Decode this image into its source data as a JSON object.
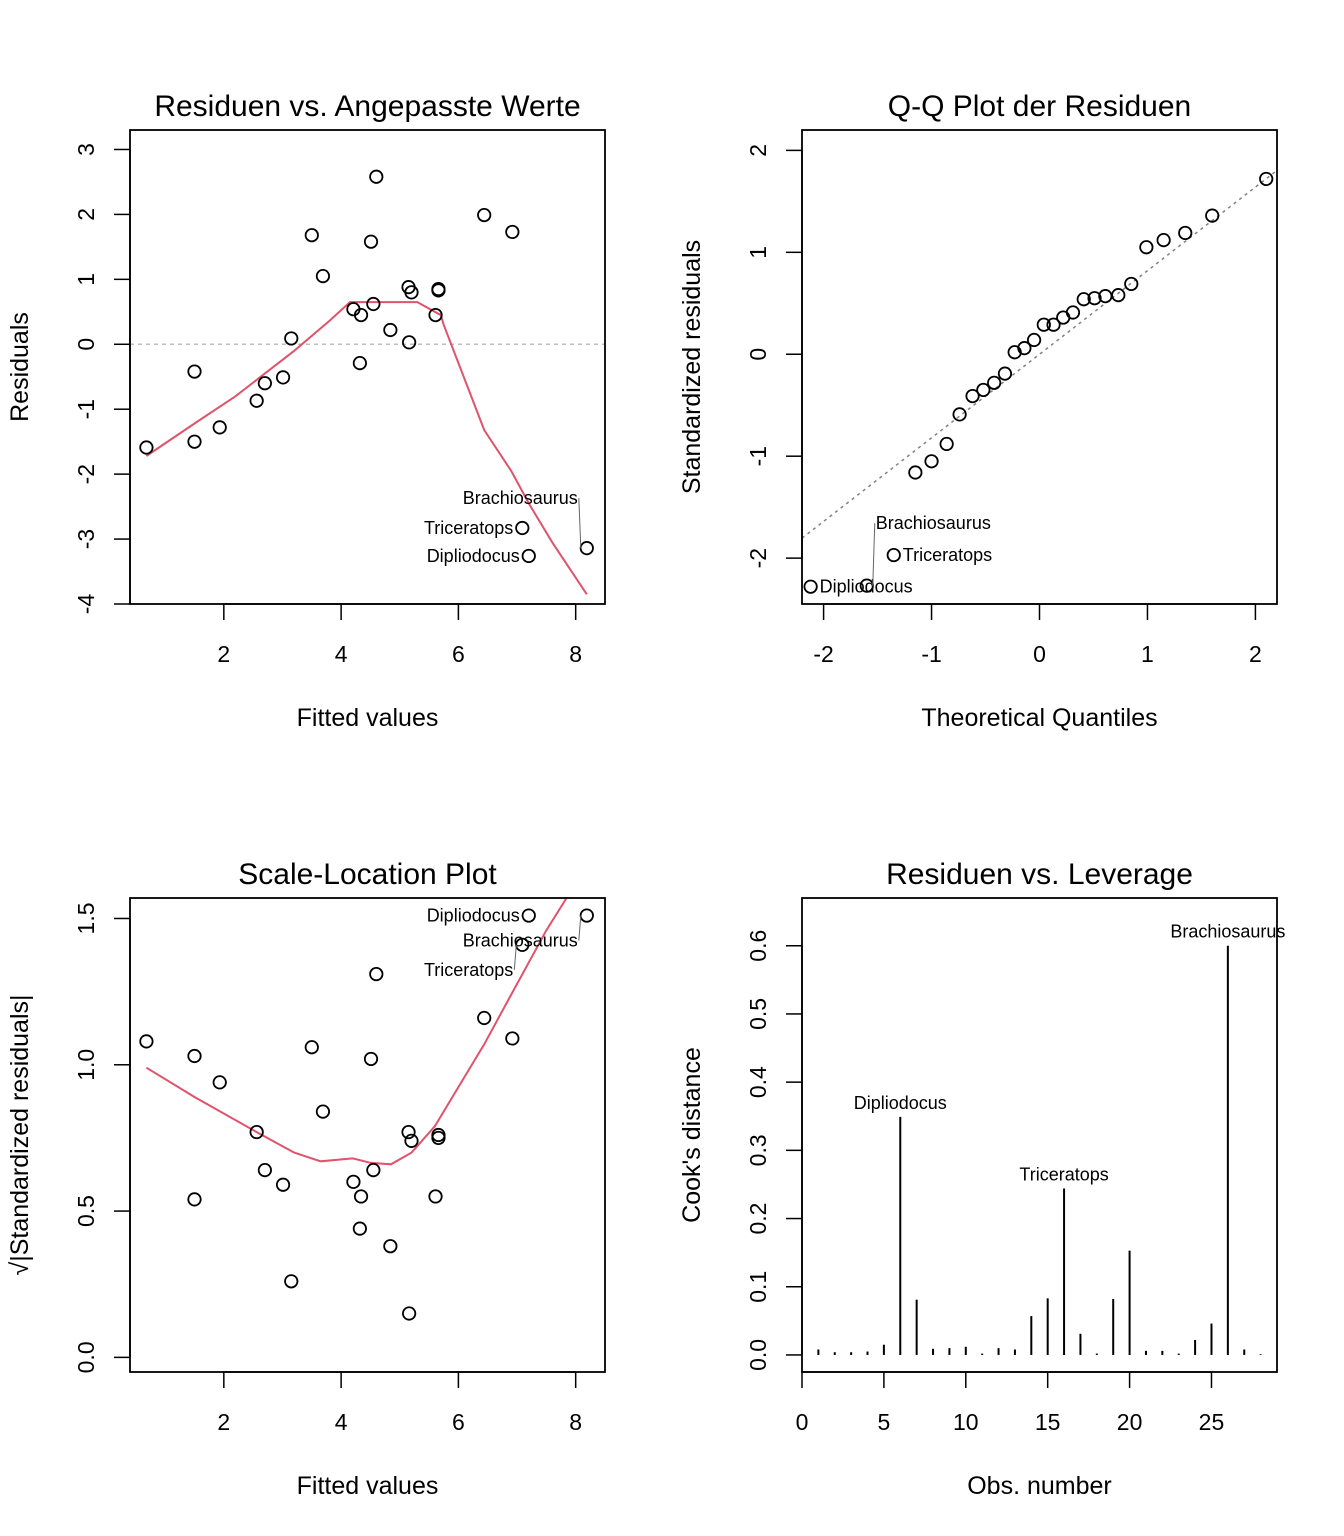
{
  "colors": {
    "points": "#000000",
    "smoother": "#DF536B",
    "reference": "#BEBEBE",
    "qqline": "#808080"
  },
  "chart_data": [
    {
      "id": "residuals-vs-fitted",
      "type": "scatter",
      "title": "Residuen vs. Angepasste Werte",
      "xlabel": "Fitted values",
      "ylabel": "Residuals",
      "xlim": [
        0.4,
        8.5
      ],
      "ylim": [
        -4.0,
        3.3
      ],
      "xticks": [
        "2",
        "4",
        "6",
        "8"
      ],
      "xtick_values": [
        2,
        4,
        6,
        8
      ],
      "yticks": [
        "-4",
        "-3",
        "-2",
        "-1",
        "0",
        "1",
        "2",
        "3"
      ],
      "ytick_values": [
        -4,
        -3,
        -2,
        -1,
        0,
        1,
        2,
        3
      ],
      "hline": 0,
      "points": [
        {
          "x": 0.68,
          "y": -1.59
        },
        {
          "x": 1.5,
          "y": -0.42
        },
        {
          "x": 1.5,
          "y": -1.5
        },
        {
          "x": 1.93,
          "y": -1.28
        },
        {
          "x": 2.56,
          "y": -0.87
        },
        {
          "x": 2.7,
          "y": -0.6
        },
        {
          "x": 3.01,
          "y": -0.51
        },
        {
          "x": 3.15,
          "y": 0.09
        },
        {
          "x": 3.5,
          "y": 1.68
        },
        {
          "x": 3.69,
          "y": 1.05
        },
        {
          "x": 4.21,
          "y": 0.54
        },
        {
          "x": 4.34,
          "y": 0.45
        },
        {
          "x": 4.32,
          "y": -0.29
        },
        {
          "x": 4.51,
          "y": 1.58
        },
        {
          "x": 4.55,
          "y": 0.62
        },
        {
          "x": 4.6,
          "y": 2.58
        },
        {
          "x": 4.84,
          "y": 0.22
        },
        {
          "x": 5.15,
          "y": 0.88
        },
        {
          "x": 5.2,
          "y": 0.8
        },
        {
          "x": 5.16,
          "y": 0.03
        },
        {
          "x": 5.61,
          "y": 0.45
        },
        {
          "x": 5.66,
          "y": 0.85
        },
        {
          "x": 5.66,
          "y": 0.83
        },
        {
          "x": 6.44,
          "y": 1.99
        },
        {
          "x": 6.92,
          "y": 1.73
        },
        {
          "x": 7.09,
          "y": -2.83
        },
        {
          "x": 7.2,
          "y": -3.26
        },
        {
          "x": 8.19,
          "y": -3.14
        }
      ],
      "labels": [
        {
          "text": "Triceratops",
          "x": 7.09,
          "y": -2.83
        },
        {
          "text": "Dipliodocus",
          "x": 7.2,
          "y": -3.26
        },
        {
          "text": "Brachiosaurus",
          "x": 8.19,
          "y": -3.14
        }
      ],
      "smoother": [
        {
          "x": 0.68,
          "y": -1.72
        },
        {
          "x": 1.5,
          "y": -1.22
        },
        {
          "x": 2.2,
          "y": -0.8
        },
        {
          "x": 3.2,
          "y": -0.1
        },
        {
          "x": 3.8,
          "y": 0.36
        },
        {
          "x": 4.15,
          "y": 0.65
        },
        {
          "x": 4.5,
          "y": 0.65
        },
        {
          "x": 5.3,
          "y": 0.65
        },
        {
          "x": 5.7,
          "y": 0.45
        },
        {
          "x": 5.75,
          "y": 0.3
        },
        {
          "x": 6.44,
          "y": -1.32
        },
        {
          "x": 6.9,
          "y": -1.95
        },
        {
          "x": 7.2,
          "y": -2.45
        },
        {
          "x": 7.6,
          "y": -3.05
        },
        {
          "x": 8.19,
          "y": -3.85
        }
      ]
    },
    {
      "id": "qq-plot",
      "type": "scatter",
      "title": "Q-Q Plot der Residuen",
      "xlabel": "Theoretical Quantiles",
      "ylabel": "Standardized residuals",
      "xlim": [
        -2.2,
        2.2
      ],
      "ylim": [
        -2.45,
        2.2
      ],
      "xticks": [
        "-2",
        "-1",
        "0",
        "1",
        "2"
      ],
      "xtick_values": [
        -2,
        -1,
        0,
        1,
        2
      ],
      "yticks": [
        "-2",
        "-1",
        "0",
        "1",
        "2"
      ],
      "ytick_values": [
        -2,
        -1,
        0,
        1,
        2
      ],
      "reference_line": {
        "slope": 0.82,
        "intercept": 0.0
      },
      "points": [
        {
          "x": -2.12,
          "y": -2.28
        },
        {
          "x": -1.6,
          "y": -2.27
        },
        {
          "x": -1.35,
          "y": -1.97
        },
        {
          "x": -1.15,
          "y": -1.16
        },
        {
          "x": -1.0,
          "y": -1.05
        },
        {
          "x": -0.86,
          "y": -0.88
        },
        {
          "x": -0.74,
          "y": -0.59
        },
        {
          "x": -0.62,
          "y": -0.41
        },
        {
          "x": -0.52,
          "y": -0.35
        },
        {
          "x": -0.42,
          "y": -0.28
        },
        {
          "x": -0.32,
          "y": -0.19
        },
        {
          "x": -0.23,
          "y": 0.02
        },
        {
          "x": -0.14,
          "y": 0.06
        },
        {
          "x": -0.05,
          "y": 0.14
        },
        {
          "x": 0.04,
          "y": 0.29
        },
        {
          "x": 0.13,
          "y": 0.29
        },
        {
          "x": 0.22,
          "y": 0.36
        },
        {
          "x": 0.31,
          "y": 0.41
        },
        {
          "x": 0.41,
          "y": 0.54
        },
        {
          "x": 0.51,
          "y": 0.55
        },
        {
          "x": 0.61,
          "y": 0.57
        },
        {
          "x": 0.73,
          "y": 0.58
        },
        {
          "x": 0.85,
          "y": 0.69
        },
        {
          "x": 0.99,
          "y": 1.05
        },
        {
          "x": 1.15,
          "y": 1.12
        },
        {
          "x": 1.35,
          "y": 1.19
        },
        {
          "x": 1.6,
          "y": 1.36
        },
        {
          "x": 2.1,
          "y": 1.72
        }
      ],
      "labels": [
        {
          "text": "Triceratops",
          "x": -1.35,
          "y": -1.97
        },
        {
          "text": "Dipliodocus",
          "x": -2.12,
          "y": -2.28
        },
        {
          "text": "Brachiosaurus",
          "x": -1.6,
          "y": -2.27
        }
      ]
    },
    {
      "id": "scale-location",
      "type": "scatter",
      "title": "Scale-Location Plot",
      "xlabel": "Fitted values",
      "ylabel": "√|Standardized residuals|",
      "xlim": [
        0.4,
        8.5
      ],
      "ylim": [
        -0.05,
        1.57
      ],
      "xticks": [
        "2",
        "4",
        "6",
        "8"
      ],
      "xtick_values": [
        2,
        4,
        6,
        8
      ],
      "yticks": [
        "0.0",
        "0.5",
        "1.0",
        "1.5"
      ],
      "ytick_values": [
        0.0,
        0.5,
        1.0,
        1.5
      ],
      "points": [
        {
          "x": 0.68,
          "y": 1.08
        },
        {
          "x": 1.5,
          "y": 0.54
        },
        {
          "x": 1.5,
          "y": 1.03
        },
        {
          "x": 1.93,
          "y": 0.94
        },
        {
          "x": 2.56,
          "y": 0.77
        },
        {
          "x": 2.7,
          "y": 0.64
        },
        {
          "x": 3.01,
          "y": 0.59
        },
        {
          "x": 3.15,
          "y": 0.26
        },
        {
          "x": 3.5,
          "y": 1.06
        },
        {
          "x": 3.69,
          "y": 0.84
        },
        {
          "x": 4.21,
          "y": 0.6
        },
        {
          "x": 4.34,
          "y": 0.55
        },
        {
          "x": 4.32,
          "y": 0.44
        },
        {
          "x": 4.51,
          "y": 1.02
        },
        {
          "x": 4.55,
          "y": 0.64
        },
        {
          "x": 4.6,
          "y": 1.31
        },
        {
          "x": 4.84,
          "y": 0.38
        },
        {
          "x": 5.15,
          "y": 0.77
        },
        {
          "x": 5.2,
          "y": 0.74
        },
        {
          "x": 5.16,
          "y": 0.15
        },
        {
          "x": 5.61,
          "y": 0.55
        },
        {
          "x": 5.66,
          "y": 0.76
        },
        {
          "x": 5.66,
          "y": 0.75
        },
        {
          "x": 6.44,
          "y": 1.16
        },
        {
          "x": 6.92,
          "y": 1.09
        },
        {
          "x": 7.09,
          "y": 1.41
        },
        {
          "x": 7.2,
          "y": 1.51
        },
        {
          "x": 8.19,
          "y": 1.51
        }
      ],
      "labels": [
        {
          "text": "Dipliodocus",
          "x": 7.2,
          "y": 1.51
        },
        {
          "text": "Brachiosaurus",
          "x": 8.19,
          "y": 1.51
        },
        {
          "text": "Triceratops",
          "x": 7.09,
          "y": 1.41
        }
      ],
      "smoother": [
        {
          "x": 0.68,
          "y": 0.99
        },
        {
          "x": 1.5,
          "y": 0.89
        },
        {
          "x": 2.56,
          "y": 0.77
        },
        {
          "x": 3.2,
          "y": 0.7
        },
        {
          "x": 3.65,
          "y": 0.67
        },
        {
          "x": 4.2,
          "y": 0.68
        },
        {
          "x": 4.5,
          "y": 0.665
        },
        {
          "x": 4.85,
          "y": 0.66
        },
        {
          "x": 5.2,
          "y": 0.7
        },
        {
          "x": 5.6,
          "y": 0.79
        },
        {
          "x": 6.44,
          "y": 1.07
        },
        {
          "x": 6.9,
          "y": 1.24
        },
        {
          "x": 7.5,
          "y": 1.46
        },
        {
          "x": 8.0,
          "y": 1.62
        }
      ]
    },
    {
      "id": "cooks-distance",
      "type": "bar",
      "title": "Residuen vs. Leverage",
      "xlabel": "Obs. number",
      "ylabel": "Cook's distance",
      "xlim": [
        0,
        29
      ],
      "ylim": [
        -0.025,
        0.67
      ],
      "xticks": [
        "0",
        "5",
        "10",
        "15",
        "20",
        "25"
      ],
      "xtick_values": [
        0,
        5,
        10,
        15,
        20,
        25
      ],
      "yticks": [
        "0.0",
        "0.1",
        "0.2",
        "0.3",
        "0.4",
        "0.5",
        "0.6"
      ],
      "ytick_values": [
        0.0,
        0.1,
        0.2,
        0.3,
        0.4,
        0.5,
        0.6
      ],
      "categories": [
        1,
        2,
        3,
        4,
        5,
        6,
        7,
        8,
        9,
        10,
        11,
        12,
        13,
        14,
        15,
        16,
        17,
        18,
        19,
        20,
        21,
        22,
        23,
        24,
        25,
        26,
        27,
        28
      ],
      "values": [
        0.008,
        0.004,
        0.004,
        0.005,
        0.015,
        0.349,
        0.081,
        0.009,
        0.01,
        0.012,
        0.002,
        0.01,
        0.008,
        0.057,
        0.083,
        0.244,
        0.031,
        0.002,
        0.082,
        0.153,
        0.006,
        0.006,
        0.002,
        0.022,
        0.046,
        0.6,
        0.008,
        0.001
      ],
      "labels": [
        {
          "text": "Dipliodocus",
          "x": 6,
          "y": 0.349
        },
        {
          "text": "Triceratops",
          "x": 16,
          "y": 0.244
        },
        {
          "text": "Brachiosaurus",
          "x": 26,
          "y": 0.6
        }
      ]
    }
  ]
}
